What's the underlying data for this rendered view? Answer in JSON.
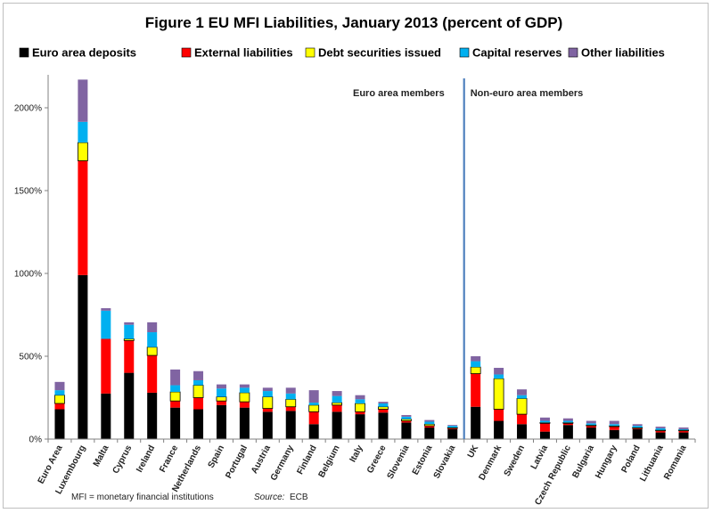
{
  "chart_data": {
    "type": "bar",
    "stacked": true,
    "title": "Figure 1 EU MFI Liabilities, January 2013  (percent of GDP)",
    "ylim": [
      0,
      2200
    ],
    "yticks": [
      "0%",
      "500%",
      "1000%",
      "1500%",
      "2000%"
    ],
    "ytick_values": [
      0,
      500,
      1000,
      1500,
      2000
    ],
    "legend_position": "top",
    "grid": false,
    "categories": [
      "Euro Area",
      "Luxembourg",
      "Malta",
      "Cyprus",
      "Ireland",
      "France",
      "Netherlands",
      "Spain",
      "Portugal",
      "Austria",
      "Germany",
      "Finland",
      "Belgium",
      "Italy",
      "Greece",
      "Slovenia",
      "Estonia",
      "Slovakia",
      "UK",
      "Denmark",
      "Sweden",
      "Latvia",
      "Czech Republic",
      "Bulgaria",
      "Hungary",
      "Poland",
      "Lithuania",
      "Romania"
    ],
    "series": [
      {
        "name": "Euro area deposits",
        "color": "#000000",
        "values": [
          180,
          990,
          275,
          400,
          280,
          190,
          180,
          205,
          190,
          165,
          170,
          90,
          165,
          150,
          160,
          100,
          70,
          60,
          195,
          110,
          90,
          45,
          85,
          70,
          55,
          60,
          40,
          40
        ]
      },
      {
        "name": "External liabilities",
        "color": "#ff0000",
        "values": [
          35,
          690,
          330,
          195,
          225,
          40,
          70,
          25,
          35,
          20,
          25,
          75,
          40,
          15,
          20,
          10,
          10,
          5,
          200,
          70,
          60,
          50,
          10,
          10,
          20,
          5,
          10,
          10
        ]
      },
      {
        "name": "Debt securities issued",
        "color": "#ffff00",
        "values": [
          50,
          110,
          0,
          10,
          50,
          55,
          75,
          25,
          55,
          70,
          45,
          40,
          15,
          50,
          15,
          10,
          10,
          5,
          40,
          185,
          95,
          5,
          5,
          5,
          5,
          5,
          5,
          5
        ]
      },
      {
        "name": "Capital reserves",
        "color": "#00b0f0",
        "values": [
          30,
          125,
          170,
          85,
          90,
          40,
          30,
          50,
          30,
          35,
          35,
          15,
          40,
          25,
          20,
          15,
          15,
          10,
          35,
          25,
          20,
          10,
          10,
          10,
          10,
          10,
          10,
          5
        ]
      },
      {
        "name": "Other liabilities",
        "color": "#8064a2",
        "values": [
          50,
          255,
          15,
          15,
          60,
          95,
          55,
          25,
          20,
          20,
          35,
          75,
          30,
          25,
          10,
          10,
          10,
          5,
          30,
          40,
          35,
          20,
          15,
          15,
          20,
          10,
          10,
          10
        ]
      }
    ],
    "annotations": [
      {
        "text": "Euro area members"
      },
      {
        "text": "Non-euro area members"
      }
    ],
    "divider_after": "Slovakia"
  },
  "footnote": {
    "note": "MFI = monetary financial institutions",
    "source_label": "Source:",
    "source_value": "ECB"
  }
}
